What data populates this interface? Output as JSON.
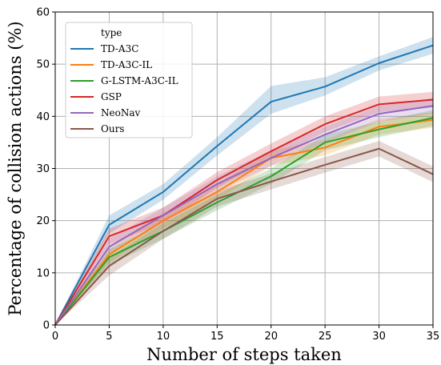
{
  "chart_data": {
    "type": "line",
    "xlabel": "Number of steps taken",
    "ylabel": "Percentage of collision actions (%)",
    "xlim": [
      0,
      35
    ],
    "ylim": [
      0,
      60
    ],
    "xticks": [
      0,
      5,
      10,
      15,
      20,
      25,
      30,
      35
    ],
    "yticks": [
      0,
      10,
      20,
      30,
      40,
      50,
      60
    ],
    "grid": true,
    "legend_title": "type",
    "legend_position": "upper-left",
    "x": [
      0,
      5,
      10,
      15,
      20,
      25,
      30,
      35
    ],
    "series": [
      {
        "name": "TD-A3C",
        "color": "#1f77b4",
        "values": [
          0,
          19.2,
          25.5,
          34.3,
          42.8,
          45.7,
          50.2,
          53.6
        ],
        "lower": [
          0,
          17.5,
          24.0,
          32.5,
          40.5,
          44.0,
          48.8,
          52.0
        ],
        "upper": [
          0,
          21.0,
          27.0,
          36.0,
          45.8,
          47.5,
          51.5,
          55.2
        ]
      },
      {
        "name": "TD-A3C-IL",
        "color": "#ff7f0e",
        "values": [
          0,
          13.5,
          20.0,
          25.5,
          32.0,
          34.0,
          38.0,
          39.3
        ],
        "lower": [
          0,
          12.0,
          18.5,
          24.0,
          30.5,
          32.5,
          36.5,
          37.8
        ],
        "upper": [
          0,
          15.0,
          21.5,
          27.0,
          33.5,
          35.5,
          39.5,
          40.8
        ]
      },
      {
        "name": "G-LSTM-A3C-IL",
        "color": "#2ca02c",
        "values": [
          0,
          13.0,
          18.0,
          23.5,
          28.5,
          35.0,
          37.5,
          39.7
        ],
        "lower": [
          0,
          11.5,
          16.5,
          22.0,
          27.0,
          33.5,
          36.0,
          38.2
        ],
        "upper": [
          0,
          14.5,
          19.5,
          25.0,
          30.0,
          36.5,
          39.0,
          41.2
        ]
      },
      {
        "name": "GSP",
        "color": "#d62728",
        "values": [
          0,
          17.0,
          21.0,
          27.8,
          33.3,
          38.5,
          42.3,
          43.2
        ],
        "lower": [
          0,
          15.5,
          19.5,
          26.3,
          31.8,
          37.0,
          40.8,
          41.7
        ],
        "upper": [
          0,
          18.5,
          22.5,
          29.3,
          34.8,
          40.0,
          43.8,
          44.7
        ]
      },
      {
        "name": "NeoNav",
        "color": "#9467bd",
        "values": [
          0,
          15.0,
          21.0,
          27.0,
          32.0,
          36.5,
          40.5,
          42.0
        ],
        "lower": [
          0,
          13.5,
          19.5,
          25.5,
          30.5,
          35.0,
          39.0,
          40.5
        ],
        "upper": [
          0,
          16.5,
          22.5,
          28.5,
          33.5,
          38.0,
          42.0,
          43.5
        ]
      },
      {
        "name": "Ours",
        "color": "#8c564b",
        "values": [
          0,
          11.3,
          18.0,
          24.2,
          27.5,
          30.7,
          33.8,
          28.9
        ],
        "lower": [
          0,
          9.5,
          16.5,
          22.7,
          26.0,
          29.2,
          32.3,
          27.4
        ],
        "upper": [
          0,
          13.0,
          19.5,
          25.7,
          29.0,
          32.2,
          35.3,
          30.4
        ]
      }
    ]
  }
}
